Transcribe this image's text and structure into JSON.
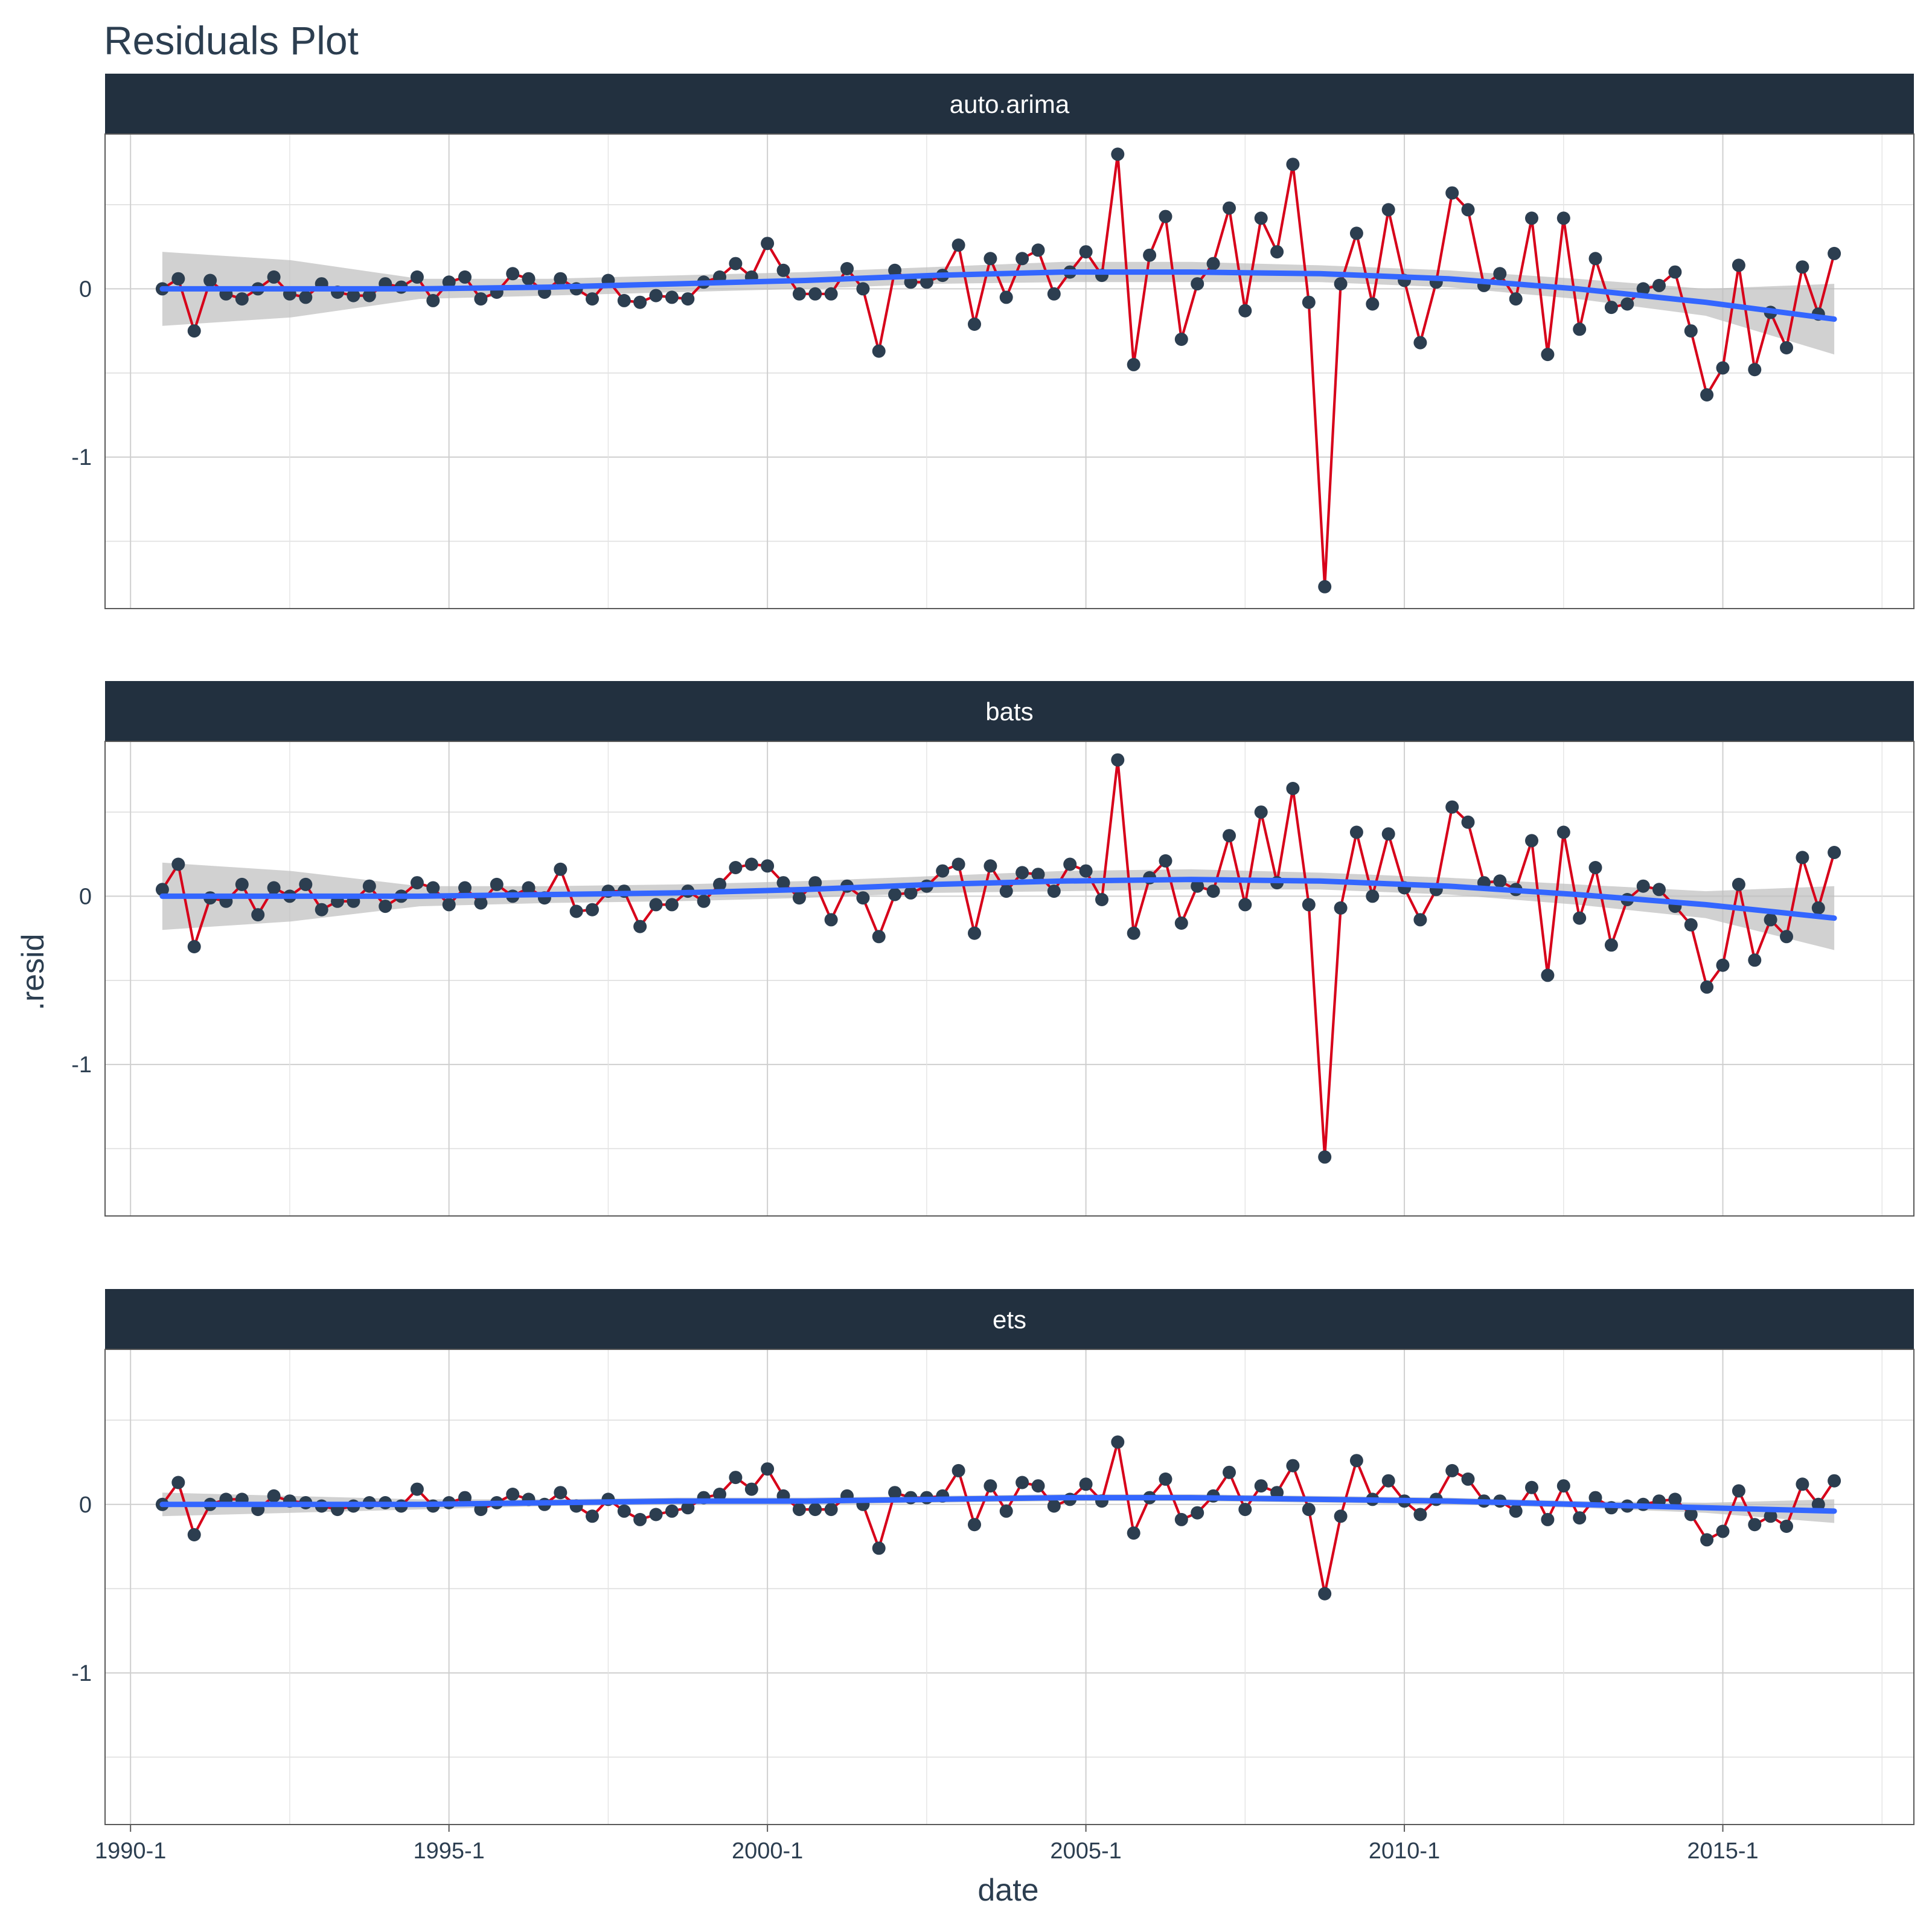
{
  "chart_data": {
    "type": "line",
    "title": "Residuals Plot",
    "xlabel": "date",
    "ylabel": ".resid",
    "x_ticks": [
      "1990-1",
      "1995-1",
      "2000-1",
      "2005-1",
      "2010-1",
      "2015-1"
    ],
    "x_tick_years": [
      1990,
      1995,
      2000,
      2005,
      2010,
      2015
    ],
    "xlim": [
      1989.6,
      2018.0
    ],
    "y_ticks": [
      0,
      -1
    ],
    "ylim": [
      -1.9,
      0.92
    ],
    "grid": true,
    "legend": "none",
    "start_year": 1990.5,
    "period_years": 0.25,
    "colors": {
      "line": "#d7001a",
      "point": "#2c3e50",
      "smooth": "#3366ff",
      "band": "#bdbdbd",
      "strip": "#22303f"
    },
    "panels": [
      {
        "name": "auto.arima",
        "values": [
          0.0,
          0.06,
          -0.25,
          0.05,
          -0.03,
          -0.06,
          0.0,
          0.07,
          -0.03,
          -0.05,
          0.03,
          -0.02,
          -0.04,
          -0.04,
          0.03,
          0.01,
          0.07,
          -0.07,
          0.04,
          0.07,
          -0.06,
          -0.02,
          0.09,
          0.06,
          -0.02,
          0.06,
          0.0,
          -0.06,
          0.05,
          -0.07,
          -0.08,
          -0.04,
          -0.05,
          -0.06,
          0.04,
          0.07,
          0.15,
          0.07,
          0.27,
          0.11,
          -0.03,
          -0.03,
          -0.03,
          0.12,
          0.0,
          -0.37,
          0.11,
          0.04,
          0.04,
          0.08,
          0.26,
          -0.21,
          0.18,
          -0.05,
          0.18,
          0.23,
          -0.03,
          0.1,
          0.22,
          0.08,
          0.8,
          -0.45,
          0.2,
          0.43,
          -0.3,
          0.03,
          0.15,
          0.48,
          -0.13,
          0.42,
          0.22,
          0.74,
          -0.08,
          -1.77,
          0.03,
          0.33,
          -0.09,
          0.47,
          0.05,
          -0.32,
          0.04,
          0.57,
          0.47,
          0.02,
          0.09,
          -0.06,
          0.42,
          -0.39,
          0.42,
          -0.24,
          0.18,
          -0.11,
          -0.09,
          0.0,
          0.02,
          0.1,
          -0.25,
          -0.63,
          -0.47,
          0.14,
          -0.48,
          -0.14,
          -0.35,
          0.13,
          -0.15,
          0.21
        ],
        "smooth": [
          0.0,
          0.0,
          0.0,
          0.01,
          0.03,
          0.05,
          0.08,
          0.1,
          0.1,
          0.09,
          0.06,
          0.0,
          -0.08,
          -0.18
        ],
        "band": [
          0.22,
          0.17,
          0.06,
          0.05,
          0.05,
          0.05,
          0.05,
          0.06,
          0.06,
          0.05,
          0.05,
          0.06,
          0.08,
          0.21
        ]
      },
      {
        "name": "bats",
        "values": [
          0.04,
          0.19,
          -0.3,
          -0.01,
          -0.03,
          0.07,
          -0.11,
          0.05,
          0.0,
          0.07,
          -0.08,
          -0.03,
          -0.03,
          0.06,
          -0.06,
          0.0,
          0.08,
          0.05,
          -0.05,
          0.05,
          -0.04,
          0.07,
          0.0,
          0.05,
          -0.01,
          0.16,
          -0.09,
          -0.08,
          0.03,
          0.03,
          -0.18,
          -0.05,
          -0.05,
          0.03,
          -0.03,
          0.07,
          0.17,
          0.19,
          0.18,
          0.08,
          -0.01,
          0.08,
          -0.14,
          0.06,
          -0.01,
          -0.24,
          0.01,
          0.02,
          0.06,
          0.15,
          0.19,
          -0.22,
          0.18,
          0.03,
          0.14,
          0.13,
          0.03,
          0.19,
          0.15,
          -0.02,
          0.81,
          -0.22,
          0.11,
          0.21,
          -0.16,
          0.06,
          0.03,
          0.36,
          -0.05,
          0.5,
          0.08,
          0.64,
          -0.05,
          -1.55,
          -0.07,
          0.38,
          0.0,
          0.37,
          0.05,
          -0.14,
          0.04,
          0.53,
          0.44,
          0.08,
          0.09,
          0.04,
          0.33,
          -0.47,
          0.38,
          -0.13,
          0.17,
          -0.29,
          -0.02,
          0.06,
          0.04,
          -0.06,
          -0.17,
          -0.54,
          -0.41,
          0.07,
          -0.38,
          -0.14,
          -0.24,
          0.23,
          -0.07,
          0.26
        ],
        "smooth": [
          0.0,
          0.0,
          0.0,
          0.01,
          0.02,
          0.04,
          0.07,
          0.09,
          0.1,
          0.09,
          0.06,
          0.01,
          -0.05,
          -0.13
        ],
        "band": [
          0.2,
          0.15,
          0.06,
          0.05,
          0.05,
          0.05,
          0.05,
          0.06,
          0.06,
          0.05,
          0.05,
          0.06,
          0.08,
          0.19
        ]
      },
      {
        "name": "ets",
        "values": [
          0.0,
          0.13,
          -0.18,
          0.0,
          0.03,
          0.03,
          -0.03,
          0.05,
          0.02,
          0.01,
          -0.01,
          -0.03,
          -0.01,
          0.01,
          0.01,
          -0.01,
          0.09,
          -0.01,
          0.01,
          0.04,
          -0.03,
          0.01,
          0.06,
          0.03,
          0.0,
          0.07,
          -0.01,
          -0.07,
          0.03,
          -0.04,
          -0.09,
          -0.06,
          -0.04,
          -0.02,
          0.04,
          0.06,
          0.16,
          0.09,
          0.21,
          0.05,
          -0.03,
          -0.03,
          -0.03,
          0.05,
          0.0,
          -0.26,
          0.07,
          0.04,
          0.04,
          0.05,
          0.2,
          -0.12,
          0.11,
          -0.04,
          0.13,
          0.11,
          -0.01,
          0.03,
          0.12,
          0.02,
          0.37,
          -0.17,
          0.04,
          0.15,
          -0.09,
          -0.05,
          0.05,
          0.19,
          -0.03,
          0.11,
          0.07,
          0.23,
          -0.03,
          -0.53,
          -0.07,
          0.26,
          0.03,
          0.14,
          0.02,
          -0.06,
          0.03,
          0.2,
          0.15,
          0.02,
          0.02,
          -0.04,
          0.1,
          -0.09,
          0.11,
          -0.08,
          0.04,
          -0.02,
          -0.01,
          0.0,
          0.02,
          0.03,
          -0.06,
          -0.21,
          -0.16,
          0.08,
          -0.12,
          -0.07,
          -0.13,
          0.12,
          0.0,
          0.14
        ],
        "smooth": [
          0.0,
          0.0,
          0.0,
          0.01,
          0.02,
          0.02,
          0.03,
          0.04,
          0.04,
          0.03,
          0.02,
          0.0,
          -0.02,
          -0.04
        ],
        "band": [
          0.07,
          0.05,
          0.03,
          0.02,
          0.02,
          0.02,
          0.02,
          0.02,
          0.02,
          0.02,
          0.02,
          0.02,
          0.03,
          0.07
        ]
      }
    ]
  }
}
